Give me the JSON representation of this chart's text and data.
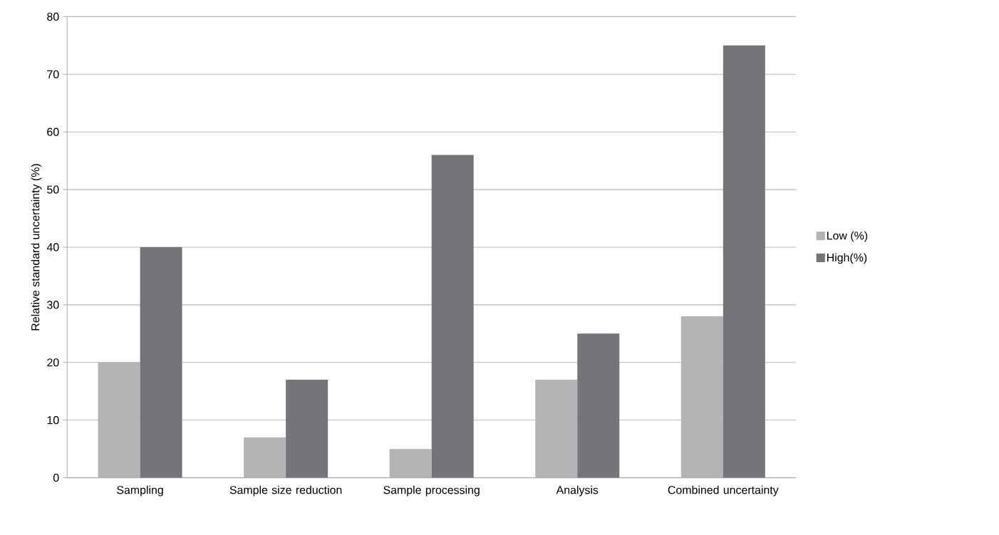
{
  "chart_data": {
    "type": "bar",
    "ylabel": "Relative standard uncertainty (%)",
    "categories": [
      "Sampling",
      "Sample size reduction",
      "Sample processing",
      "Analysis",
      "Combined uncertainty"
    ],
    "series": [
      {
        "name": "Low (%)",
        "color": "#b3b4b6",
        "values": [
          20,
          7,
          5,
          17,
          28
        ]
      },
      {
        "name": "High(%)",
        "color": "#747579",
        "values": [
          40,
          17,
          56,
          25,
          75
        ]
      }
    ],
    "ylim": [
      0,
      80
    ],
    "yticks": [
      0,
      10,
      20,
      30,
      40,
      50,
      60,
      70,
      80
    ],
    "grid": "y",
    "legend": "right"
  }
}
